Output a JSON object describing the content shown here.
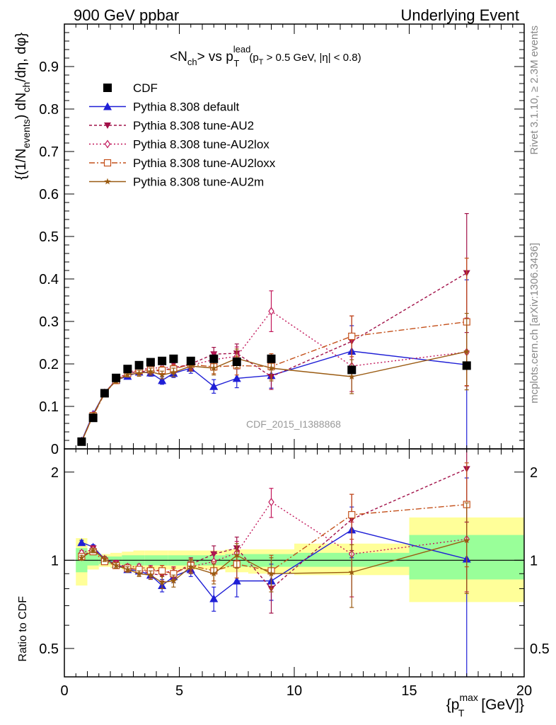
{
  "header": {
    "left": "900 GeV ppbar",
    "right": "Underlying Event"
  },
  "side_labels": {
    "rivet": "Rivet 3.1.10, ≥ 2.3M events",
    "mcplots": "mcplots.cern.ch [arXiv:1306.3436]"
  },
  "chart_data": [
    {
      "type": "line",
      "title": "<N_ch> vs p_T^lead (p_T > 0.5 GeV, |η| < 0.8)",
      "title_parts": {
        "main": "<N",
        "ch_sub": "ch",
        "vs": "> vs p",
        "lead_sup": "lead",
        "T_sub": "T",
        "cuts": "(p",
        "cuts_T": "T",
        "cuts_rest": " > 0.5 GeV, |η| < 0.8)"
      },
      "ylabel": "{(1/N_events) dN_ch/dη, dφ}",
      "ylabel_parts": {
        "a": "{(1/N",
        "b": "events",
        "c": ") dN",
        "d": "ch",
        "e": "/dη, dφ}"
      },
      "watermark": "CDF_2015_I1388868",
      "xlim": [
        0,
        20
      ],
      "ylim": [
        0,
        1.0
      ],
      "yticks": [
        0,
        0.1,
        0.2,
        0.3,
        0.4,
        0.5,
        0.6,
        0.7,
        0.8,
        0.9
      ],
      "ytick_labels": [
        "0",
        "0.1",
        "0.2",
        "0.3",
        "0.4",
        "0.5",
        "0.6",
        "0.7",
        "0.8",
        "0.9"
      ],
      "legend_position": "top-left",
      "data_series": {
        "name": "CDF",
        "x": [
          0.75,
          1.25,
          1.75,
          2.25,
          2.75,
          3.25,
          3.75,
          4.25,
          4.75,
          5.5,
          6.5,
          7.5,
          9.0,
          12.5,
          17.5
        ],
        "y": [
          0.017,
          0.073,
          0.131,
          0.167,
          0.188,
          0.197,
          0.204,
          0.207,
          0.212,
          0.207,
          0.212,
          0.205,
          0.212,
          0.186,
          0.196
        ]
      },
      "series": [
        {
          "name": "Pythia 8.308 default",
          "color": "#1f1fd6",
          "marker": "triangle-up",
          "dash": "",
          "x": [
            0.75,
            1.25,
            1.75,
            2.25,
            2.75,
            3.25,
            3.75,
            4.25,
            4.75,
            5.5,
            6.5,
            7.5,
            9.0,
            12.5,
            17.5
          ],
          "y": [
            0.019,
            0.082,
            0.132,
            0.162,
            0.171,
            0.181,
            0.179,
            0.161,
            0.178,
            0.19,
            0.147,
            0.166,
            0.173,
            0.23,
            0.198
          ],
          "err": [
            0.003,
            0.004,
            0.004,
            0.005,
            0.006,
            0.007,
            0.008,
            0.009,
            0.01,
            0.012,
            0.016,
            0.022,
            0.03,
            0.06,
            0.2
          ]
        },
        {
          "name": "Pythia 8.308 tune-AU2",
          "color": "#a11048",
          "marker": "triangle-down",
          "dash": "4,3",
          "x": [
            0.75,
            1.25,
            1.75,
            2.25,
            2.75,
            3.25,
            3.75,
            4.25,
            4.75,
            5.5,
            6.5,
            7.5,
            9.0,
            12.5,
            17.5
          ],
          "y": [
            0.017,
            0.08,
            0.131,
            0.163,
            0.177,
            0.183,
            0.182,
            0.185,
            0.19,
            0.2,
            0.223,
            0.225,
            0.17,
            0.253,
            0.414
          ],
          "err": [
            0.003,
            0.004,
            0.004,
            0.005,
            0.006,
            0.007,
            0.008,
            0.009,
            0.01,
            0.012,
            0.016,
            0.022,
            0.03,
            0.06,
            0.14
          ]
        },
        {
          "name": "Pythia 8.308 tune-AU2lox",
          "color": "#c2185b",
          "marker": "diamond-open",
          "dash": "2,3",
          "x": [
            0.75,
            1.25,
            1.75,
            2.25,
            2.75,
            3.25,
            3.75,
            4.25,
            4.75,
            5.5,
            6.5,
            7.5,
            9.0,
            12.5,
            17.5
          ],
          "y": [
            0.018,
            0.08,
            0.132,
            0.162,
            0.18,
            0.187,
            0.19,
            0.191,
            0.192,
            0.197,
            0.21,
            0.218,
            0.324,
            0.195,
            0.228
          ],
          "err": [
            0.003,
            0.004,
            0.004,
            0.005,
            0.006,
            0.007,
            0.008,
            0.009,
            0.01,
            0.012,
            0.016,
            0.022,
            0.048,
            0.06,
            0.08
          ]
        },
        {
          "name": "Pythia 8.308 tune-AU2loxx",
          "color": "#c4501a",
          "marker": "square-open",
          "dash": "8,3,2,3",
          "x": [
            0.75,
            1.25,
            1.75,
            2.25,
            2.75,
            3.25,
            3.75,
            4.25,
            4.75,
            5.5,
            6.5,
            7.5,
            9.0,
            12.5,
            17.5
          ],
          "y": [
            0.017,
            0.078,
            0.13,
            0.161,
            0.177,
            0.184,
            0.186,
            0.185,
            0.188,
            0.199,
            0.193,
            0.196,
            0.194,
            0.265,
            0.299
          ],
          "err": [
            0.003,
            0.004,
            0.004,
            0.005,
            0.006,
            0.007,
            0.008,
            0.009,
            0.01,
            0.012,
            0.016,
            0.022,
            0.03,
            0.048,
            0.15
          ]
        },
        {
          "name": "Pythia 8.308 tune-AU2m",
          "color": "#9a5b12",
          "marker": "star",
          "dash": "",
          "x": [
            0.75,
            1.25,
            1.75,
            2.25,
            2.75,
            3.25,
            3.75,
            4.25,
            4.75,
            5.5,
            6.5,
            7.5,
            9.0,
            12.5,
            17.5
          ],
          "y": [
            0.017,
            0.079,
            0.132,
            0.16,
            0.175,
            0.178,
            0.182,
            0.174,
            0.18,
            0.195,
            0.19,
            0.213,
            0.19,
            0.17,
            0.229
          ],
          "err": [
            0.003,
            0.004,
            0.004,
            0.005,
            0.006,
            0.007,
            0.008,
            0.009,
            0.01,
            0.012,
            0.016,
            0.022,
            0.03,
            0.04,
            0.09
          ]
        }
      ]
    },
    {
      "type": "line",
      "ylabel": "Ratio to CDF",
      "xlabel": "{p_T^max [GeV]}",
      "xlabel_parts": {
        "a": "{p",
        "sup": "max",
        "sub": "T",
        "b": " [GeV]}"
      },
      "xlim": [
        0,
        20
      ],
      "ylim": [
        0.4,
        2.4
      ],
      "log_y": true,
      "xticks": [
        0,
        5,
        10,
        15,
        20
      ],
      "xtick_labels": [
        "0",
        "5",
        "10",
        "15",
        "20"
      ],
      "yticks": [
        0.5,
        1,
        2
      ],
      "ytick_labels": [
        "0.5",
        "1",
        "2"
      ],
      "bands": [
        {
          "x0": 0.5,
          "x1": 1.0,
          "stat": [
            0.91,
            1.1
          ],
          "total": [
            0.82,
            1.19
          ]
        },
        {
          "x0": 1.0,
          "x1": 1.5,
          "stat": [
            0.96,
            1.05
          ],
          "total": [
            0.93,
            1.08
          ]
        },
        {
          "x0": 1.5,
          "x1": 2.0,
          "stat": [
            0.97,
            1.03
          ],
          "total": [
            0.95,
            1.05
          ]
        },
        {
          "x0": 2.0,
          "x1": 2.5,
          "stat": [
            0.97,
            1.03
          ],
          "total": [
            0.94,
            1.06
          ]
        },
        {
          "x0": 2.5,
          "x1": 3.0,
          "stat": [
            0.96,
            1.04
          ],
          "total": [
            0.93,
            1.07
          ]
        },
        {
          "x0": 3.0,
          "x1": 3.5,
          "stat": [
            0.96,
            1.04
          ],
          "total": [
            0.93,
            1.08
          ]
        },
        {
          "x0": 3.5,
          "x1": 4.0,
          "stat": [
            0.96,
            1.04
          ],
          "total": [
            0.93,
            1.08
          ]
        },
        {
          "x0": 4.0,
          "x1": 4.5,
          "stat": [
            0.96,
            1.04
          ],
          "total": [
            0.93,
            1.08
          ]
        },
        {
          "x0": 4.5,
          "x1": 5.0,
          "stat": [
            0.96,
            1.04
          ],
          "total": [
            0.93,
            1.08
          ]
        },
        {
          "x0": 5.0,
          "x1": 6.0,
          "stat": [
            0.96,
            1.04
          ],
          "total": [
            0.93,
            1.08
          ]
        },
        {
          "x0": 6.0,
          "x1": 7.0,
          "stat": [
            0.96,
            1.04
          ],
          "total": [
            0.93,
            1.08
          ]
        },
        {
          "x0": 7.0,
          "x1": 8.0,
          "stat": [
            0.95,
            1.05
          ],
          "total": [
            0.91,
            1.09
          ]
        },
        {
          "x0": 8.0,
          "x1": 10.0,
          "stat": [
            0.95,
            1.05
          ],
          "total": [
            0.9,
            1.09
          ]
        },
        {
          "x0": 10.0,
          "x1": 15.0,
          "stat": [
            0.95,
            1.06
          ],
          "total": [
            0.89,
            1.14
          ]
        },
        {
          "x0": 15.0,
          "x1": 20.0,
          "stat": [
            0.86,
            1.22
          ],
          "total": [
            0.72,
            1.4
          ]
        }
      ],
      "series": [
        {
          "name": "Pythia 8.308 default",
          "color": "#1f1fd6",
          "marker": "triangle-up",
          "dash": "",
          "x": [
            0.75,
            1.25,
            1.75,
            2.25,
            2.75,
            3.25,
            3.75,
            4.25,
            4.75,
            5.5,
            6.5,
            7.5,
            9.0,
            12.5,
            17.5
          ],
          "y": [
            1.15,
            1.11,
            1.01,
            0.97,
            0.93,
            0.92,
            0.89,
            0.82,
            0.88,
            0.93,
            0.74,
            0.85,
            0.85,
            1.27,
            1.01
          ],
          "err": [
            0.02,
            0.02,
            0.02,
            0.02,
            0.02,
            0.02,
            0.03,
            0.04,
            0.04,
            0.05,
            0.07,
            0.1,
            0.12,
            0.25,
            0.9
          ]
        },
        {
          "name": "Pythia 8.308 tune-AU2",
          "color": "#a11048",
          "marker": "triangle-down",
          "dash": "4,3",
          "x": [
            0.75,
            1.25,
            1.75,
            2.25,
            2.75,
            3.25,
            3.75,
            4.25,
            4.75,
            5.5,
            6.5,
            7.5,
            9.0,
            12.5,
            17.5
          ],
          "y": [
            1.02,
            1.1,
            1.0,
            0.98,
            0.94,
            0.93,
            0.9,
            0.89,
            0.9,
            0.97,
            1.05,
            1.1,
            0.8,
            1.38,
            2.05
          ],
          "err": [
            0.02,
            0.02,
            0.02,
            0.02,
            0.02,
            0.02,
            0.03,
            0.04,
            0.04,
            0.05,
            0.07,
            0.1,
            0.14,
            0.3,
            0.7
          ]
        },
        {
          "name": "Pythia 8.308 tune-AU2lox",
          "color": "#c2185b",
          "marker": "diamond-open",
          "dash": "2,3",
          "x": [
            0.75,
            1.25,
            1.75,
            2.25,
            2.75,
            3.25,
            3.75,
            4.25,
            4.75,
            5.5,
            6.5,
            7.5,
            9.0,
            12.5,
            17.5
          ],
          "y": [
            1.06,
            1.09,
            1.01,
            0.97,
            0.95,
            0.95,
            0.93,
            0.92,
            0.91,
            0.95,
            0.99,
            1.06,
            1.58,
            1.05,
            1.18
          ],
          "err": [
            0.02,
            0.02,
            0.02,
            0.02,
            0.02,
            0.02,
            0.03,
            0.04,
            0.04,
            0.05,
            0.07,
            0.1,
            0.18,
            0.3,
            0.4
          ]
        },
        {
          "name": "Pythia 8.308 tune-AU2loxx",
          "color": "#c4501a",
          "marker": "square-open",
          "dash": "8,3,2,3",
          "x": [
            0.75,
            1.25,
            1.75,
            2.25,
            2.75,
            3.25,
            3.75,
            4.25,
            4.75,
            5.5,
            6.5,
            7.5,
            9.0,
            12.5,
            17.5
          ],
          "y": [
            1.03,
            1.07,
            0.99,
            0.96,
            0.94,
            0.93,
            0.92,
            0.92,
            0.9,
            0.96,
            0.92,
            0.97,
            0.92,
            1.43,
            1.55
          ],
          "err": [
            0.02,
            0.02,
            0.02,
            0.02,
            0.02,
            0.02,
            0.03,
            0.04,
            0.04,
            0.05,
            0.07,
            0.1,
            0.12,
            0.25,
            0.6
          ]
        },
        {
          "name": "Pythia 8.308 tune-AU2m",
          "color": "#9a5b12",
          "marker": "star",
          "dash": "",
          "x": [
            0.75,
            1.25,
            1.75,
            2.25,
            2.75,
            3.25,
            3.75,
            4.25,
            4.75,
            5.5,
            6.5,
            7.5,
            9.0,
            12.5,
            17.5
          ],
          "y": [
            1.02,
            1.08,
            1.01,
            0.96,
            0.93,
            0.9,
            0.89,
            0.84,
            0.85,
            0.95,
            0.9,
            1.04,
            0.9,
            0.91,
            1.17
          ],
          "err": [
            0.02,
            0.02,
            0.02,
            0.02,
            0.02,
            0.02,
            0.03,
            0.04,
            0.04,
            0.05,
            0.07,
            0.1,
            0.12,
            0.22,
            0.4
          ]
        }
      ]
    }
  ]
}
